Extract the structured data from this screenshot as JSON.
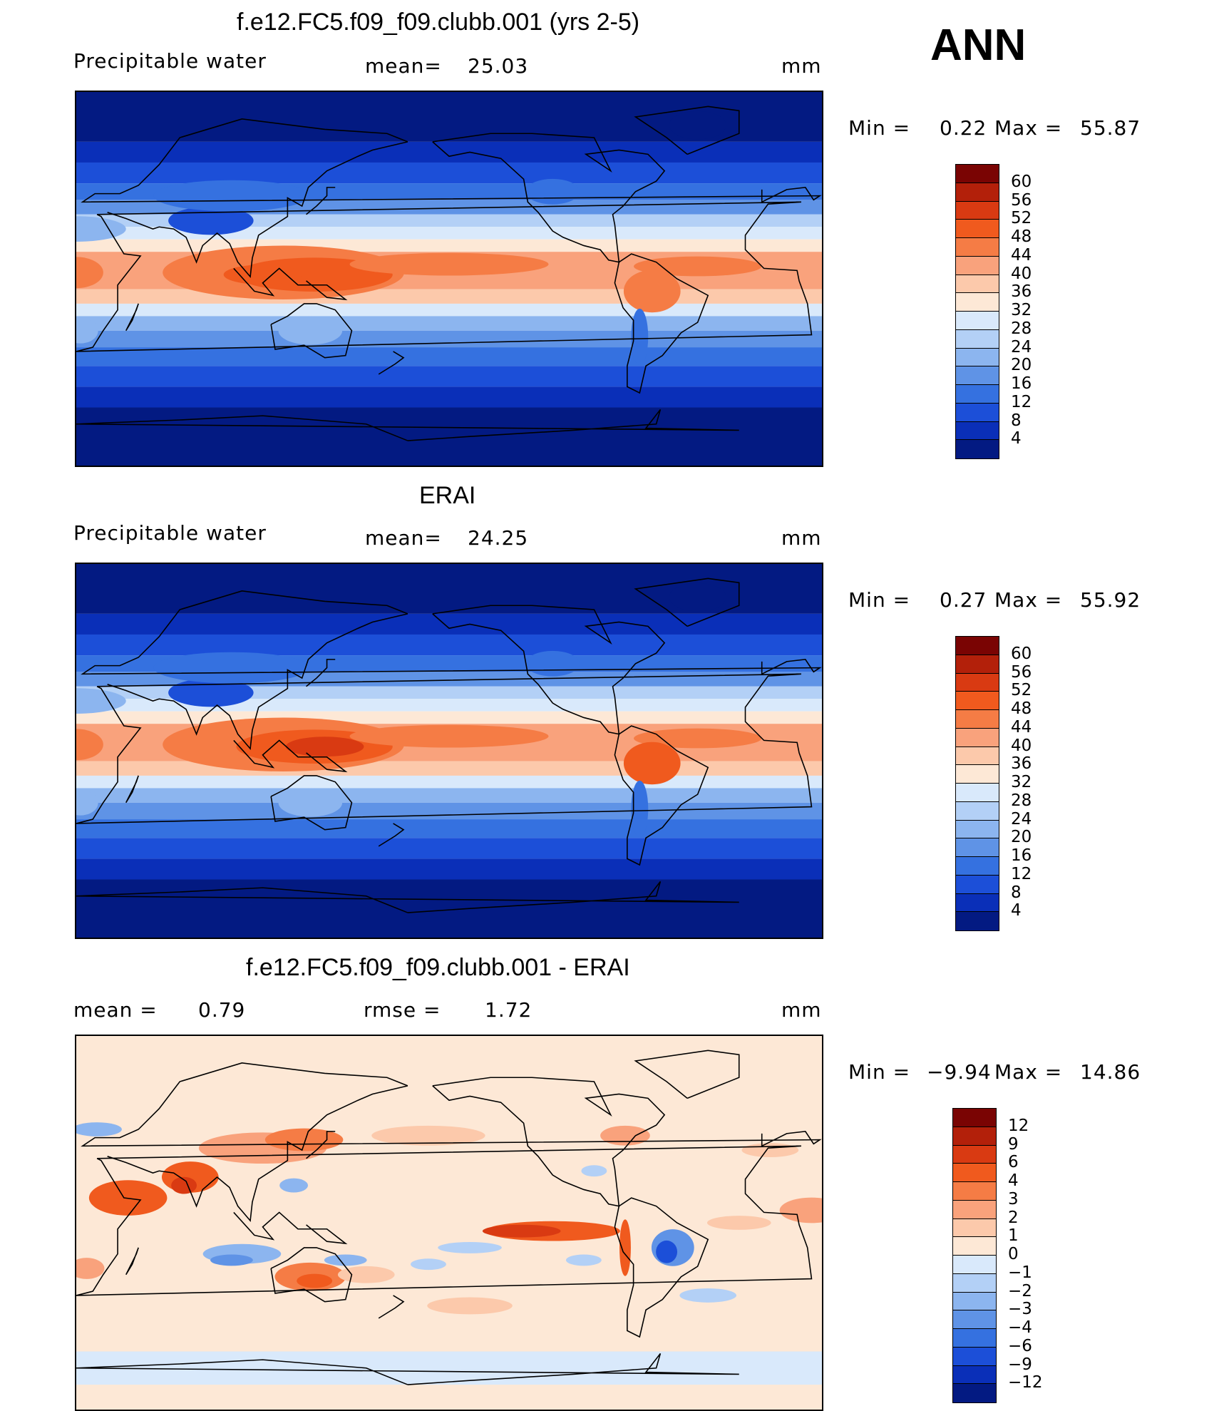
{
  "season": "ANN",
  "panels": [
    {
      "title": "f.e12.FC5.f09_f09.clubb.001 (yrs 2-5)",
      "left_label": "Precipitable  water",
      "stat1_label": "mean=",
      "stat1_value": "25.03",
      "stat2_label": "",
      "stat2_value": "",
      "units": "mm",
      "min_label": "Min  =",
      "min_value": "0.22",
      "max_label": "Max  =",
      "max_value": "55.87",
      "type": "field"
    },
    {
      "title": "ERAI",
      "left_label": "Precipitable  water",
      "stat1_label": "mean=",
      "stat1_value": "24.25",
      "stat2_label": "",
      "stat2_value": "",
      "units": "mm",
      "min_label": "Min  =",
      "min_value": "0.27",
      "max_label": "Max  =",
      "max_value": "55.92",
      "type": "field"
    },
    {
      "title": "f.e12.FC5.f09_f09.clubb.001 - ERAI",
      "left_label": "mean  =",
      "stat1_label": "",
      "stat1_value": "0.79",
      "stat2_label": "rmse  =",
      "stat2_value": "1.72",
      "units": "mm",
      "min_label": "Min  =",
      "min_value": "−9.94",
      "max_label": "Max  =",
      "max_value": "14.86",
      "type": "difference"
    }
  ],
  "chart_data": [
    {
      "type": "heatmap",
      "title": "f.e12.FC5.f09_f09.clubb.001 (yrs 2-5)",
      "variable": "Precipitable water",
      "units": "mm",
      "mean": 25.03,
      "min": 0.22,
      "max": 55.87,
      "colorbar_levels": [
        60,
        56,
        52,
        48,
        44,
        40,
        36,
        32,
        28,
        24,
        20,
        16,
        12,
        8,
        4
      ],
      "colorbar_colors": [
        "#7a0403",
        "#b3200a",
        "#d93a12",
        "#f05a1e",
        "#f57c45",
        "#f9a27c",
        "#fcc9ab",
        "#fde8d6",
        "#d9e9fb",
        "#b3d0f6",
        "#8cb5ef",
        "#5f93e6",
        "#3571e0",
        "#1c4fd8",
        "#0a2fb8",
        "#031a82"
      ]
    },
    {
      "type": "heatmap",
      "title": "ERAI",
      "variable": "Precipitable water",
      "units": "mm",
      "mean": 24.25,
      "min": 0.27,
      "max": 55.92,
      "colorbar_levels": [
        60,
        56,
        52,
        48,
        44,
        40,
        36,
        32,
        28,
        24,
        20,
        16,
        12,
        8,
        4
      ],
      "colorbar_colors": [
        "#7a0403",
        "#b3200a",
        "#d93a12",
        "#f05a1e",
        "#f57c45",
        "#f9a27c",
        "#fcc9ab",
        "#fde8d6",
        "#d9e9fb",
        "#b3d0f6",
        "#8cb5ef",
        "#5f93e6",
        "#3571e0",
        "#1c4fd8",
        "#0a2fb8",
        "#031a82"
      ]
    },
    {
      "type": "heatmap",
      "title": "f.e12.FC5.f09_f09.clubb.001 - ERAI",
      "units": "mm",
      "mean": 0.79,
      "rmse": 1.72,
      "min": -9.94,
      "max": 14.86,
      "colorbar_levels": [
        "12",
        "9",
        "6",
        "4",
        "3",
        "2",
        "1",
        "0",
        "−1",
        "−2",
        "−3",
        "−4",
        "−6",
        "−9",
        "−12"
      ],
      "colorbar_colors": [
        "#7a0403",
        "#b3200a",
        "#d93a12",
        "#f05a1e",
        "#f57c45",
        "#f9a27c",
        "#fcc9ab",
        "#fde8d6",
        "#d9e9fb",
        "#b3d0f6",
        "#8cb5ef",
        "#5f93e6",
        "#3571e0",
        "#1c4fd8",
        "#0a2fb8",
        "#031a82"
      ]
    }
  ]
}
